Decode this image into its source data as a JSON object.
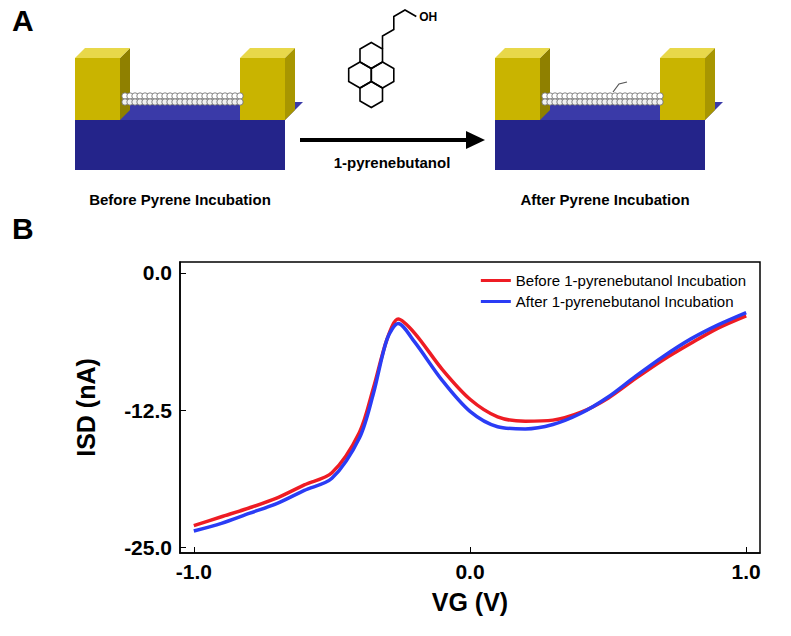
{
  "diagram": {
    "panel_letter": "A",
    "left_label": "Before Pyrene Incubation",
    "reagent": "1-pyrenebutanol",
    "reagent_group": "OH",
    "right_label": "After Pyrene Incubation"
  },
  "chart_data": {
    "panel_letter": "B",
    "type": "line",
    "xlabel": "VG (V)",
    "ylabel": "ISD (nA)",
    "x": [
      -1.0,
      -0.9,
      -0.8,
      -0.7,
      -0.6,
      -0.5,
      -0.4,
      -0.35,
      -0.3,
      -0.26,
      -0.2,
      -0.1,
      0.0,
      0.1,
      0.2,
      0.3,
      0.4,
      0.5,
      0.6,
      0.7,
      0.8,
      0.9,
      1.0
    ],
    "series": [
      {
        "name": "Before 1-pyrenebutanol Incubation",
        "color": "#ee1c24",
        "values": [
          -23.0,
          -22.2,
          -21.4,
          -20.5,
          -19.3,
          -18.2,
          -14.5,
          -10.5,
          -6.0,
          -4.2,
          -5.5,
          -8.8,
          -11.5,
          -13.1,
          -13.5,
          -13.4,
          -12.7,
          -11.4,
          -9.6,
          -7.9,
          -6.4,
          -5.0,
          -3.9
        ]
      },
      {
        "name": "After 1-pyrenebutanol Incubation",
        "color": "#2a3cf5",
        "values": [
          -23.5,
          -22.8,
          -21.9,
          -21.0,
          -19.8,
          -18.7,
          -15.0,
          -11.0,
          -6.0,
          -4.6,
          -6.3,
          -9.8,
          -12.6,
          -14.0,
          -14.2,
          -13.8,
          -12.8,
          -11.3,
          -9.4,
          -7.6,
          -6.0,
          -4.7,
          -3.6
        ]
      }
    ],
    "xlim": [
      -1.05,
      1.05
    ],
    "xticks": [
      {
        "value": -1.0,
        "label": "-1.0"
      },
      {
        "value": 0.0,
        "label": "0.0"
      },
      {
        "value": 1.0,
        "label": "1.0"
      }
    ],
    "ylim": [
      -25.5,
      1.0
    ],
    "yticks": [
      {
        "value": -25.0,
        "label": "-25.0"
      },
      {
        "value": -12.5,
        "label": "-12.5"
      },
      {
        "value": 0.0,
        "label": "0.0"
      }
    ],
    "grid": false,
    "legend": "upper right"
  }
}
